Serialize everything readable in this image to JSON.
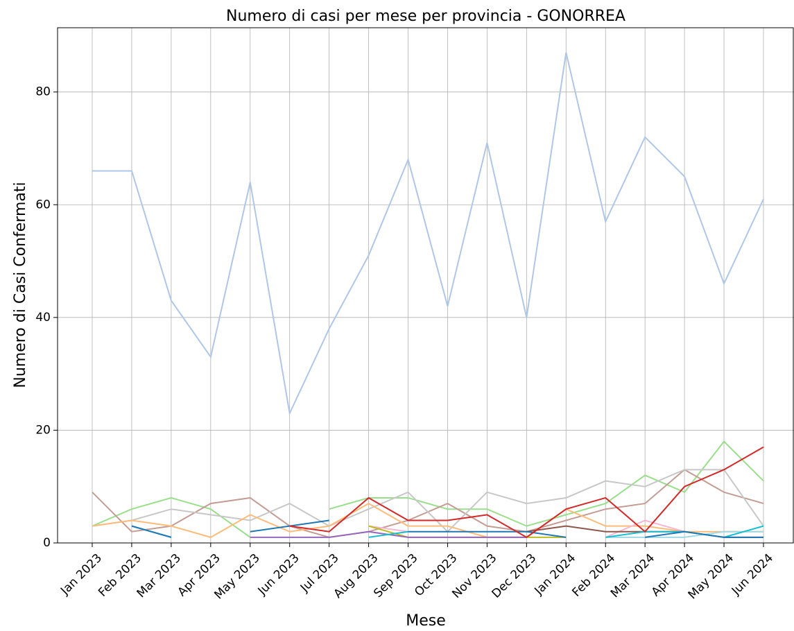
{
  "chart_data": {
    "type": "line",
    "title": "Numero di casi per mese per provincia - GONORREA",
    "x_label": "Mese",
    "y_label": "Numero di Casi Confermati",
    "categories": [
      "Jan 2023",
      "Feb 2023",
      "Mar 2023",
      "Apr 2023",
      "May 2023",
      "Jun 2023",
      "Jul 2023",
      "Aug 2023",
      "Sep 2023",
      "Oct 2023",
      "Nov 2023",
      "Dec 2023",
      "Jan 2024",
      "Feb 2024",
      "Mar 2024",
      "Apr 2024",
      "May 2024",
      "Jun 2024"
    ],
    "ylim": [
      0,
      91.4
    ],
    "yticks": [
      0,
      20,
      40,
      60,
      80
    ],
    "grid": true,
    "series": [
      {
        "color": "#98df8a",
        "values": [
          3,
          6,
          8,
          6,
          1,
          null,
          6,
          8,
          8,
          6,
          6,
          3,
          5,
          7,
          12,
          9,
          18,
          11
        ]
      },
      {
        "color": "#c49c94",
        "values": [
          9,
          2,
          3,
          7,
          8,
          3,
          1,
          2,
          4,
          7,
          3,
          2,
          4,
          6,
          7,
          13,
          9,
          7
        ]
      },
      {
        "color": "#c7c7c7",
        "values": [
          3,
          4,
          6,
          5,
          4,
          7,
          3,
          6,
          9,
          2,
          9,
          7,
          8,
          11,
          10,
          13,
          13,
          3
        ]
      },
      {
        "color": "#ffbb78",
        "values": [
          3,
          4,
          3,
          1,
          5,
          2,
          3,
          7,
          3,
          3,
          1,
          1,
          6,
          3,
          3,
          2,
          2,
          2
        ]
      },
      {
        "color": "#9edae5",
        "values": [
          null,
          null,
          null,
          null,
          null,
          null,
          null,
          null,
          null,
          null,
          null,
          null,
          null,
          1,
          1,
          1,
          2,
          2
        ]
      },
      {
        "color": "#f7b6d2",
        "values": [
          null,
          null,
          null,
          null,
          null,
          null,
          null,
          3,
          2,
          null,
          null,
          null,
          null,
          1,
          4,
          2,
          null,
          null
        ]
      },
      {
        "color": "#bcbd22",
        "values": [
          null,
          null,
          null,
          null,
          null,
          null,
          null,
          3,
          1,
          1,
          1,
          1,
          1,
          null,
          null,
          null,
          null,
          null
        ]
      },
      {
        "color": "#8c564b",
        "values": [
          null,
          null,
          null,
          null,
          null,
          null,
          null,
          null,
          null,
          null,
          null,
          2,
          3,
          2,
          2,
          2,
          1,
          1
        ]
      },
      {
        "color": "#9467bd",
        "values": [
          null,
          null,
          null,
          null,
          1,
          1,
          1,
          2,
          1,
          1,
          1,
          1,
          null,
          null,
          null,
          null,
          null,
          null
        ]
      },
      {
        "color": "#17becf",
        "values": [
          null,
          3,
          1,
          null,
          null,
          null,
          null,
          1,
          2,
          null,
          null,
          null,
          null,
          1,
          2,
          2,
          1,
          3
        ]
      },
      {
        "color": "#1f77b4",
        "values": [
          null,
          3,
          1,
          null,
          2,
          3,
          4,
          null,
          2,
          2,
          2,
          2,
          1,
          null,
          1,
          2,
          1,
          1
        ]
      },
      {
        "color": "#d62728",
        "values": [
          null,
          null,
          null,
          null,
          null,
          3,
          2,
          8,
          4,
          4,
          5,
          1,
          6,
          8,
          2,
          10,
          13,
          17
        ]
      },
      {
        "color": "#aec7e8",
        "values": [
          66,
          66,
          43,
          33,
          64,
          23,
          38,
          51,
          68,
          42,
          71,
          40,
          87,
          57,
          72,
          65,
          46,
          61
        ]
      }
    ]
  }
}
